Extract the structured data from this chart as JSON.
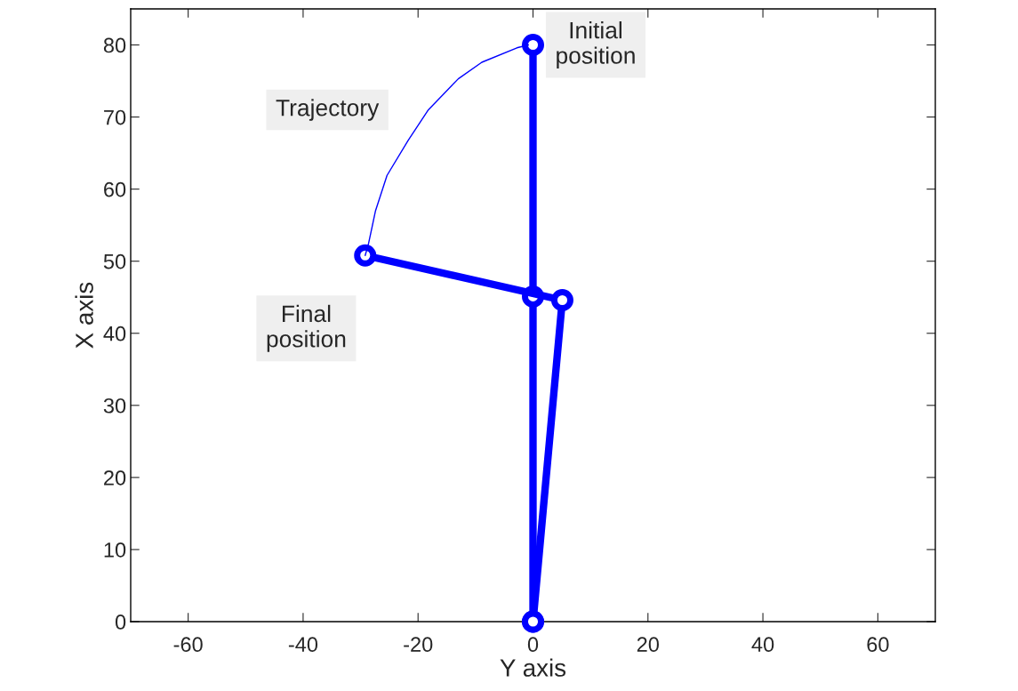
{
  "chart_data": {
    "type": "line",
    "xlabel": "Y axis",
    "ylabel": "X axis",
    "series": [
      {
        "color": "#0000ff",
        "x": [
          0,
          0,
          0
        ],
        "values": [
          0,
          45.1,
          80
        ],
        "marker": "circle",
        "line_style": "solid"
      },
      {
        "color": "#0000ff",
        "x": [
          0,
          5.1,
          -29.2
        ],
        "values": [
          0,
          44.6,
          50.8
        ],
        "marker": "circle",
        "line_style": "solid"
      },
      {
        "color": "#0000ff",
        "x": [
          -0.8,
          -2.8,
          -8.9,
          -13,
          -18.2,
          -21.7,
          -25.4,
          -27.4,
          -28.6,
          -29.2
        ],
        "values": [
          80,
          79.6,
          77.6,
          75.3,
          71,
          66.8,
          61.9,
          57,
          52.5,
          50.8
        ],
        "marker": "none",
        "line_style": "solid"
      }
    ],
    "annotations": [
      {
        "text": "Initial\nposition",
        "x": 0,
        "y": 80
      },
      {
        "text": "Trajectory",
        "x": -18.2,
        "y": 71
      },
      {
        "text": "Final\nposition",
        "x": -29.2,
        "y": 50.8
      }
    ],
    "xlim": [
      -70,
      70
    ],
    "ylim": [
      0,
      85
    ],
    "xticks": [
      -60,
      -40,
      -20,
      0,
      20,
      40,
      60
    ],
    "yticks": [
      0,
      10,
      20,
      30,
      40,
      50,
      60,
      70,
      80
    ],
    "grid": false,
    "legend": false
  }
}
